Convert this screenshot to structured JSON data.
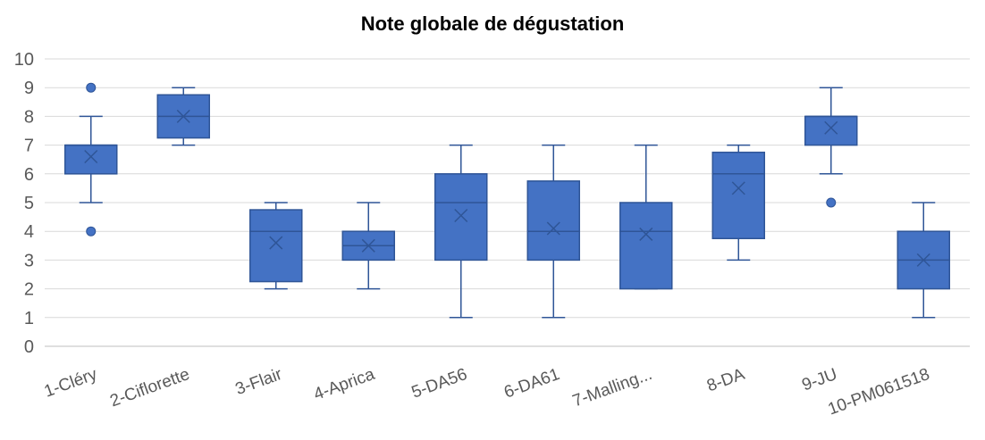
{
  "chart_data": {
    "type": "boxplot",
    "title": "Note globale de dégustation",
    "xlabel": "",
    "ylabel": "",
    "ylim": [
      0,
      10
    ],
    "yticks": [
      "0",
      "1",
      "2",
      "3",
      "4",
      "5",
      "6",
      "7",
      "8",
      "9",
      "10"
    ],
    "grid": true,
    "legend": "none",
    "color": "#4472C4",
    "edge_color": "#2F5597",
    "categories": [
      "1-Cléry",
      "2-Ciflorette",
      "3-Flair",
      "4-Aprica",
      "5-DA56",
      "6-DA61",
      "7-Malling...",
      "8-DA",
      "9-JU",
      "10-PM061518"
    ],
    "boxes": [
      {
        "min": 5,
        "q1": 6,
        "median": 7,
        "q3": 7,
        "max": 8,
        "mean": 6.6,
        "outliers": [
          9,
          4
        ]
      },
      {
        "min": 7,
        "q1": 7.25,
        "median": 8,
        "q3": 8.75,
        "max": 9,
        "mean": 8,
        "outliers": []
      },
      {
        "min": 2,
        "q1": 2.25,
        "median": 4,
        "q3": 4.75,
        "max": 5,
        "mean": 3.6,
        "outliers": []
      },
      {
        "min": 2,
        "q1": 3,
        "median": 3.5,
        "q3": 4,
        "max": 5,
        "mean": 3.5,
        "outliers": []
      },
      {
        "min": 1,
        "q1": 3,
        "median": 5,
        "q3": 6,
        "max": 7,
        "mean": 4.55,
        "outliers": []
      },
      {
        "min": 1,
        "q1": 3,
        "median": 4,
        "q3": 5.75,
        "max": 7,
        "mean": 4.1,
        "outliers": []
      },
      {
        "min": 2,
        "q1": 2,
        "median": 4,
        "q3": 5,
        "max": 7,
        "mean": 3.9,
        "outliers": []
      },
      {
        "min": 3,
        "q1": 3.75,
        "median": 6,
        "q3": 6.75,
        "max": 7,
        "mean": 5.5,
        "outliers": []
      },
      {
        "min": 6,
        "q1": 7,
        "median": 8,
        "q3": 8,
        "max": 9,
        "mean": 7.6,
        "outliers": [
          5
        ]
      },
      {
        "min": 1,
        "q1": 2,
        "median": 3,
        "q3": 4,
        "max": 5,
        "mean": 3,
        "outliers": []
      }
    ]
  }
}
